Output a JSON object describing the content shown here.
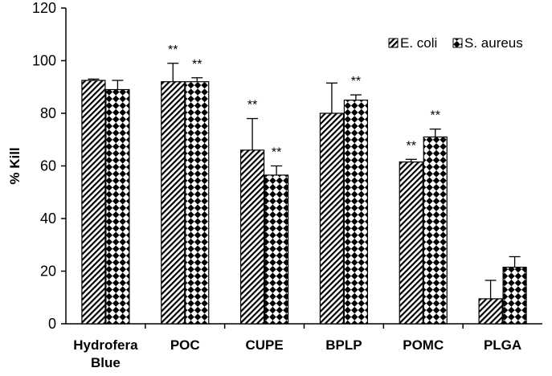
{
  "chart_data": {
    "type": "bar",
    "title": "",
    "xlabel": "",
    "ylabel": "% Kill",
    "ylim": [
      0,
      120
    ],
    "yticks": [
      "0",
      "20",
      "40",
      "60",
      "80",
      "100",
      "120"
    ],
    "grid": false,
    "legend_position": "top-right",
    "categories": [
      [
        "Hydrofera",
        "Blue"
      ],
      [
        "POC"
      ],
      [
        "CUPE"
      ],
      [
        "BPLP"
      ],
      [
        "POMC"
      ],
      [
        "PLGA"
      ]
    ],
    "series": [
      {
        "name": "E. coli",
        "pattern": "diagonal-hatch",
        "values": [
          92.5,
          92,
          66,
          80,
          61.5,
          9.5
        ],
        "errors": [
          0.5,
          7,
          12,
          11.5,
          1,
          7
        ],
        "significance": [
          "",
          "**",
          "**",
          "",
          "**",
          ""
        ]
      },
      {
        "name": "S. aureus",
        "pattern": "diamond-checker",
        "values": [
          89,
          92,
          56.5,
          85,
          71,
          21.5
        ],
        "errors": [
          3.5,
          1.5,
          3.5,
          2,
          3,
          4
        ],
        "significance": [
          "",
          "**",
          "**",
          "**",
          "**",
          ""
        ]
      }
    ]
  }
}
